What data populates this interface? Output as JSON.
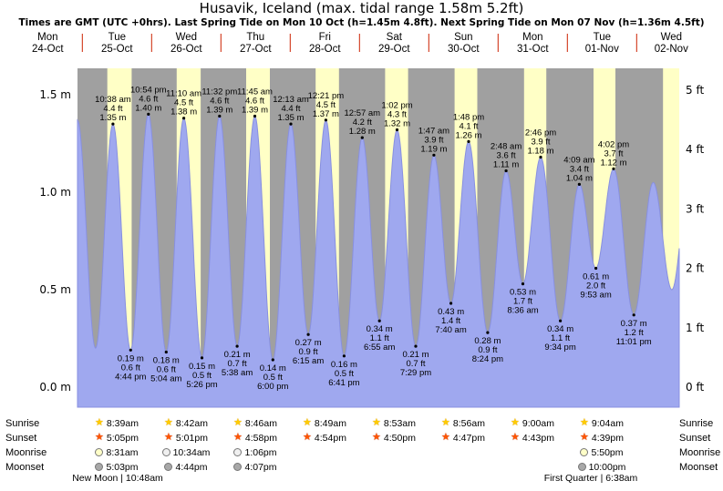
{
  "title": "Husavik, Iceland (max. tidal range 1.58m 5.2ft)",
  "subtitle": "Times are GMT (UTC +0hrs). Last Spring Tide on Mon 10 Oct (h=1.45m 4.8ft). Next Spring Tide on Mon 07 Nov (h=1.36m 4.5ft)",
  "row_labels": {
    "sunrise": "Sunrise",
    "sunset": "Sunset",
    "moonrise": "Moonrise",
    "moonset": "Moonset"
  },
  "footer": {
    "new_moon": "New Moon | 10:48am",
    "first_quarter": "First Quarter | 6:38am"
  },
  "y_axis_left": [
    {
      "label": "1.5 m",
      "value_m": 1.5
    },
    {
      "label": "1.0 m",
      "value_m": 1.0
    },
    {
      "label": "0.5 m",
      "value_m": 0.5
    },
    {
      "label": "0.0 m",
      "value_m": 0.0
    }
  ],
  "y_axis_right": [
    {
      "label": "5 ft",
      "value_ft": 5
    },
    {
      "label": "4 ft",
      "value_ft": 4
    },
    {
      "label": "3 ft",
      "value_ft": 3
    },
    {
      "label": "2 ft",
      "value_ft": 2
    },
    {
      "label": "1 ft",
      "value_ft": 1
    },
    {
      "label": "0 ft",
      "value_ft": 0
    }
  ],
  "days": [
    {
      "dow": "Mon",
      "date": "24-Oct"
    },
    {
      "dow": "Tue",
      "date": "25-Oct",
      "sunrise": "8:39am",
      "sunset": "5:05pm",
      "moonrise": "8:31am",
      "moonset": "5:03pm",
      "moonrise_icon": "pale",
      "moonset_icon": "gray"
    },
    {
      "dow": "Wed",
      "date": "26-Oct",
      "sunrise": "8:42am",
      "sunset": "5:01pm",
      "moonrise": "10:34am",
      "moonset": "4:44pm",
      "moonrise_icon": "white",
      "moonset_icon": "gray"
    },
    {
      "dow": "Thu",
      "date": "27-Oct",
      "sunrise": "8:46am",
      "sunset": "4:58pm",
      "moonrise": "1:06pm",
      "moonset": "4:07pm",
      "moonrise_icon": "white",
      "moonset_icon": "gray"
    },
    {
      "dow": "Fri",
      "date": "28-Oct",
      "sunrise": "8:49am",
      "sunset": "4:54pm"
    },
    {
      "dow": "Sat",
      "date": "29-Oct",
      "sunrise": "8:53am",
      "sunset": "4:50pm"
    },
    {
      "dow": "Sun",
      "date": "30-Oct",
      "sunrise": "8:56am",
      "sunset": "4:47pm"
    },
    {
      "dow": "Mon",
      "date": "31-Oct",
      "sunrise": "9:00am",
      "sunset": "4:43pm"
    },
    {
      "dow": "Tue",
      "date": "01-Nov",
      "sunrise": "9:04am",
      "sunset": "4:39pm",
      "moonrise": "5:50pm",
      "moonset": "10:00pm",
      "moonrise_icon": "pale",
      "moonset_icon": "gray"
    },
    {
      "dow": "Wed",
      "date": "02-Nov",
      "daylight_band_est": [
        "9:08am",
        "4:35pm"
      ]
    }
  ],
  "chart_data": {
    "type": "area",
    "series_name": "tide height",
    "y_unit_left": "m",
    "y_unit_right": "ft",
    "ylim_m": [
      -0.1,
      1.64
    ],
    "x_range": [
      "Mon 24-Oct night",
      "Wed 02-Nov afternoon"
    ],
    "grid": false,
    "legend": false,
    "events": [
      {
        "d": 0,
        "hr": 22.33,
        "m": 1.37,
        "type": "H",
        "est": true
      },
      {
        "d": 1,
        "hr": 4.58,
        "m": 0.2,
        "type": "L",
        "est": true
      },
      {
        "d": 1,
        "hr": 10.63,
        "m": 1.35,
        "ft": "4.4",
        "time": "10:38 am",
        "type": "H"
      },
      {
        "d": 1,
        "hr": 16.73,
        "m": 0.19,
        "ft": "0.6",
        "time": "4:44 pm",
        "type": "L"
      },
      {
        "d": 1,
        "hr": 22.9,
        "m": 1.4,
        "ft": "4.6",
        "time": "10:54 pm",
        "type": "H"
      },
      {
        "d": 2,
        "hr": 5.07,
        "m": 0.18,
        "ft": "0.6",
        "time": "5:04 am",
        "type": "L"
      },
      {
        "d": 2,
        "hr": 11.17,
        "m": 1.38,
        "ft": "4.5",
        "time": "11:10 am",
        "type": "H"
      },
      {
        "d": 2,
        "hr": 17.43,
        "m": 0.15,
        "ft": "0.5",
        "time": "5:26 pm",
        "type": "L"
      },
      {
        "d": 2,
        "hr": 23.53,
        "m": 1.39,
        "ft": "4.6",
        "time": "11:32 pm",
        "type": "H"
      },
      {
        "d": 3,
        "hr": 5.63,
        "m": 0.21,
        "ft": "0.7",
        "time": "5:38 am",
        "type": "L"
      },
      {
        "d": 3,
        "hr": 11.75,
        "m": 1.39,
        "ft": "4.6",
        "time": "11:45 am",
        "type": "H"
      },
      {
        "d": 3,
        "hr": 18.0,
        "m": 0.14,
        "ft": "0.5",
        "time": "6:00 pm",
        "type": "L"
      },
      {
        "d": 4,
        "hr": 0.22,
        "m": 1.35,
        "ft": "4.4",
        "time": "12:13 am",
        "type": "H"
      },
      {
        "d": 4,
        "hr": 6.25,
        "m": 0.27,
        "ft": "0.9",
        "time": "6:15 am",
        "type": "L"
      },
      {
        "d": 4,
        "hr": 12.35,
        "m": 1.37,
        "ft": "4.5",
        "time": "12:21 pm",
        "type": "H"
      },
      {
        "d": 4,
        "hr": 18.68,
        "m": 0.16,
        "ft": "0.5",
        "time": "6:41 pm",
        "type": "L"
      },
      {
        "d": 5,
        "hr": 0.95,
        "m": 1.28,
        "ft": "4.2",
        "time": "12:57 am",
        "type": "H"
      },
      {
        "d": 5,
        "hr": 6.92,
        "m": 0.34,
        "ft": "1.1",
        "time": "6:55 am",
        "type": "L"
      },
      {
        "d": 5,
        "hr": 13.03,
        "m": 1.32,
        "ft": "4.3",
        "time": "1:02 pm",
        "type": "H"
      },
      {
        "d": 5,
        "hr": 19.48,
        "m": 0.21,
        "ft": "0.7",
        "time": "7:29 pm",
        "type": "L"
      },
      {
        "d": 6,
        "hr": 1.78,
        "m": 1.19,
        "ft": "3.9",
        "time": "1:47 am",
        "type": "H"
      },
      {
        "d": 6,
        "hr": 7.67,
        "m": 0.43,
        "ft": "1.4",
        "time": "7:40 am",
        "type": "L"
      },
      {
        "d": 6,
        "hr": 13.8,
        "m": 1.26,
        "ft": "4.1",
        "time": "1:48 pm",
        "type": "H"
      },
      {
        "d": 6,
        "hr": 20.4,
        "m": 0.28,
        "ft": "0.9",
        "time": "8:24 pm",
        "type": "L"
      },
      {
        "d": 7,
        "hr": 2.8,
        "m": 1.11,
        "ft": "3.6",
        "time": "2:48 am",
        "type": "H"
      },
      {
        "d": 7,
        "hr": 8.6,
        "m": 0.53,
        "ft": "1.7",
        "time": "8:36 am",
        "type": "L"
      },
      {
        "d": 7,
        "hr": 14.77,
        "m": 1.18,
        "ft": "3.9",
        "time": "2:46 pm",
        "type": "H"
      },
      {
        "d": 7,
        "hr": 21.57,
        "m": 0.34,
        "ft": "1.1",
        "time": "9:34 pm",
        "type": "L"
      },
      {
        "d": 8,
        "hr": 4.15,
        "m": 1.04,
        "ft": "3.4",
        "time": "4:09 am",
        "type": "H"
      },
      {
        "d": 8,
        "hr": 9.88,
        "m": 0.61,
        "ft": "2.0",
        "time": "9:53 am",
        "type": "L"
      },
      {
        "d": 8,
        "hr": 16.03,
        "m": 1.12,
        "ft": "3.7",
        "time": "4:02 pm",
        "type": "H"
      },
      {
        "d": 8,
        "hr": 23.02,
        "m": 0.37,
        "ft": "1.2",
        "time": "11:01 pm",
        "type": "L"
      },
      {
        "d": 9,
        "hr": 5.75,
        "m": 1.05,
        "type": "H",
        "est": true
      },
      {
        "d": 9,
        "hr": 12.2,
        "m": 0.5,
        "type": "L",
        "est": true
      },
      {
        "d": 9,
        "hr": 18.5,
        "m": 1.1,
        "type": "H",
        "est": true
      }
    ]
  },
  "colors": {
    "plot_bg": "#a0a0a0",
    "daylight_band": "#ffffc6",
    "tide_fill": "#9fa8ef",
    "tide_edge": "#8890e0",
    "day_label": "#cc2200",
    "marker": "#000000"
  }
}
